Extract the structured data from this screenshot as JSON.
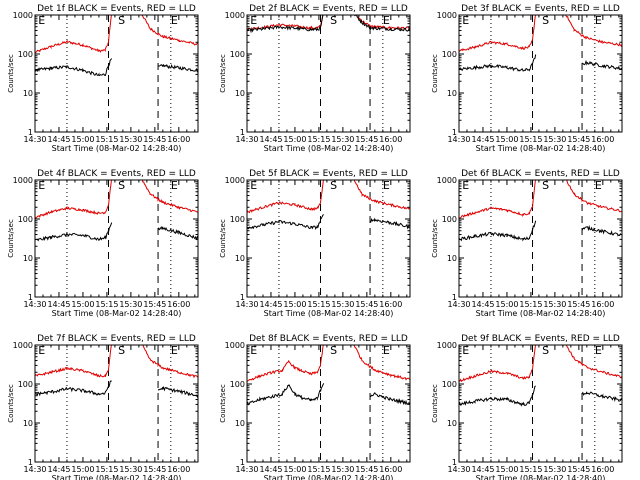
{
  "page": {
    "background": "#ffffff"
  },
  "chart_data": {
    "type": "line",
    "x_axis": {
      "label": "Start Time (08-Mar-02 14:28:40)",
      "ticks": [
        "14:30",
        "14:45",
        "15:00",
        "15:15",
        "15:30",
        "15:45",
        "16:00"
      ],
      "tick_minutes": [
        0,
        15,
        30,
        45,
        60,
        75,
        90
      ],
      "range_minutes": [
        0,
        102
      ]
    },
    "y_axis": {
      "label": "Counts/sec",
      "scale": "log",
      "ticks": [
        "1",
        "10",
        "100",
        "1000"
      ],
      "tick_values": [
        1,
        10,
        100,
        1000
      ],
      "range": [
        1,
        1000
      ]
    },
    "series_colors": {
      "events": "#000000",
      "lld": "#e00000"
    },
    "marker_style": {
      "dotted": "#000000",
      "dashed": "#000000"
    },
    "panels": [
      {
        "title": "Det 1f BLACK = Events, RED = LLD",
        "markers": {
          "dotted": [
            20,
            85
          ],
          "dashed": [
            46,
            77
          ]
        },
        "marker_labels": [
          {
            "text": "E",
            "x": 2
          },
          {
            "text": "S",
            "x": 52
          },
          {
            "text": "E",
            "x": 85
          }
        ],
        "lld": {
          "x": [
            0,
            10,
            20,
            30,
            40,
            44,
            46,
            48,
            66,
            72,
            77,
            80,
            90,
            102
          ],
          "y": [
            110,
            155,
            205,
            170,
            120,
            125,
            205,
            1200,
            1200,
            450,
            330,
            280,
            225,
            175
          ]
        },
        "events": {
          "x": [
            0,
            10,
            20,
            30,
            40,
            44,
            46,
            48,
            62,
            77,
            80,
            90,
            102
          ],
          "y": [
            38,
            43,
            47,
            38,
            28,
            30,
            52,
            75,
            null,
            46,
            50,
            44,
            38
          ]
        }
      },
      {
        "title": "Det 2f BLACK = Events, RED = LLD",
        "markers": {
          "dotted": [
            20,
            85
          ],
          "dashed": [
            46,
            77
          ]
        },
        "marker_labels": [
          {
            "text": "E",
            "x": 2
          },
          {
            "text": "S",
            "x": 52
          },
          {
            "text": "E",
            "x": 85
          }
        ],
        "lld": {
          "x": [
            0,
            10,
            20,
            30,
            40,
            44,
            46,
            48,
            66,
            72,
            77,
            80,
            90,
            102
          ],
          "y": [
            440,
            480,
            560,
            520,
            460,
            470,
            520,
            1200,
            1200,
            700,
            520,
            500,
            470,
            460
          ]
        },
        "events": {
          "x": [
            0,
            10,
            20,
            30,
            40,
            44,
            46,
            48,
            66,
            72,
            77,
            80,
            90,
            102
          ],
          "y": [
            400,
            440,
            490,
            460,
            420,
            430,
            460,
            1200,
            1200,
            640,
            480,
            460,
            440,
            420
          ]
        }
      },
      {
        "title": "Det 3f BLACK = Events, RED = LLD",
        "markers": {
          "dotted": [
            20,
            85
          ],
          "dashed": [
            46,
            77
          ]
        },
        "marker_labels": [
          {
            "text": "E",
            "x": 2
          },
          {
            "text": "S",
            "x": 52
          },
          {
            "text": "E",
            "x": 85
          }
        ],
        "lld": {
          "x": [
            0,
            10,
            20,
            30,
            40,
            44,
            46,
            48,
            66,
            72,
            77,
            80,
            90,
            102
          ],
          "y": [
            120,
            150,
            200,
            180,
            140,
            150,
            220,
            1200,
            1200,
            420,
            300,
            260,
            200,
            170
          ]
        },
        "events": {
          "x": [
            0,
            10,
            20,
            30,
            40,
            44,
            46,
            48,
            62,
            77,
            80,
            90,
            102
          ],
          "y": [
            40,
            45,
            50,
            45,
            38,
            40,
            55,
            90,
            null,
            55,
            60,
            50,
            42
          ]
        }
      },
      {
        "title": "Det 4f BLACK = Events, RED = LLD",
        "markers": {
          "dotted": [
            20,
            85
          ],
          "dashed": [
            46,
            77
          ]
        },
        "marker_labels": [
          {
            "text": "E",
            "x": 2
          },
          {
            "text": "S",
            "x": 52
          },
          {
            "text": "E",
            "x": 85
          }
        ],
        "lld": {
          "x": [
            0,
            10,
            20,
            30,
            40,
            44,
            46,
            48,
            66,
            72,
            77,
            80,
            90,
            102
          ],
          "y": [
            110,
            150,
            190,
            170,
            140,
            150,
            230,
            1200,
            1200,
            450,
            320,
            270,
            200,
            150
          ]
        },
        "events": {
          "x": [
            0,
            10,
            20,
            30,
            40,
            44,
            46,
            48,
            62,
            77,
            80,
            90,
            102
          ],
          "y": [
            28,
            34,
            40,
            38,
            30,
            33,
            50,
            85,
            null,
            55,
            58,
            45,
            32
          ]
        }
      },
      {
        "title": "Det 5f BLACK = Events, RED = LLD",
        "markers": {
          "dotted": [
            20,
            85
          ],
          "dashed": [
            46,
            77
          ]
        },
        "marker_labels": [
          {
            "text": "E",
            "x": 2
          },
          {
            "text": "S",
            "x": 52
          },
          {
            "text": "E",
            "x": 85
          }
        ],
        "lld": {
          "x": [
            0,
            10,
            20,
            30,
            40,
            44,
            46,
            48,
            66,
            72,
            77,
            80,
            90,
            102
          ],
          "y": [
            150,
            200,
            260,
            230,
            180,
            185,
            260,
            1200,
            1200,
            420,
            330,
            290,
            230,
            180
          ]
        },
        "events": {
          "x": [
            0,
            10,
            20,
            30,
            40,
            44,
            46,
            48,
            62,
            77,
            80,
            90,
            102
          ],
          "y": [
            60,
            70,
            85,
            75,
            60,
            62,
            90,
            130,
            null,
            90,
            95,
            80,
            62
          ]
        }
      },
      {
        "title": "Det 6f BLACK = Events, RED = LLD",
        "markers": {
          "dotted": [
            20,
            85
          ],
          "dashed": [
            46,
            77
          ]
        },
        "marker_labels": [
          {
            "text": "E",
            "x": 2
          },
          {
            "text": "S",
            "x": 52
          },
          {
            "text": "E",
            "x": 85
          }
        ],
        "lld": {
          "x": [
            0,
            10,
            20,
            30,
            40,
            44,
            46,
            48,
            66,
            72,
            77,
            80,
            90,
            102
          ],
          "y": [
            110,
            145,
            190,
            170,
            130,
            140,
            210,
            1200,
            1200,
            440,
            310,
            260,
            200,
            160
          ]
        },
        "events": {
          "x": [
            0,
            10,
            20,
            30,
            40,
            44,
            46,
            48,
            62,
            77,
            80,
            90,
            102
          ],
          "y": [
            30,
            36,
            42,
            38,
            30,
            32,
            55,
            85,
            null,
            55,
            60,
            48,
            38
          ]
        }
      },
      {
        "title": "Det 7f BLACK = Events, RED = LLD",
        "markers": {
          "dotted": [
            20,
            85
          ],
          "dashed": [
            46,
            77
          ]
        },
        "marker_labels": [
          {
            "text": "E",
            "x": 2
          },
          {
            "text": "S",
            "x": 52
          },
          {
            "text": "E",
            "x": 85
          }
        ],
        "lld": {
          "x": [
            0,
            10,
            20,
            30,
            40,
            44,
            46,
            48,
            66,
            72,
            77,
            80,
            90,
            102
          ],
          "y": [
            160,
            200,
            250,
            220,
            160,
            160,
            230,
            1200,
            1200,
            420,
            310,
            260,
            200,
            150
          ]
        },
        "events": {
          "x": [
            0,
            10,
            20,
            30,
            40,
            44,
            46,
            48,
            62,
            77,
            80,
            90,
            102
          ],
          "y": [
            55,
            62,
            75,
            68,
            55,
            58,
            90,
            120,
            null,
            70,
            78,
            65,
            50
          ]
        }
      },
      {
        "title": "Det 8f BLACK = Events, RED = LLD",
        "markers": {
          "dotted": [
            20,
            85
          ],
          "dashed": [
            46,
            77
          ]
        },
        "marker_labels": [
          {
            "text": "E",
            "x": 2
          },
          {
            "text": "S",
            "x": 52
          },
          {
            "text": "E",
            "x": 85
          }
        ],
        "lld": {
          "x": [
            0,
            8,
            16,
            22,
            26,
            30,
            34,
            40,
            44,
            46,
            48,
            66,
            72,
            77,
            80,
            90,
            102
          ],
          "y": [
            120,
            160,
            200,
            220,
            380,
            260,
            220,
            180,
            200,
            300,
            1200,
            1200,
            400,
            280,
            230,
            170,
            130
          ]
        },
        "events": {
          "x": [
            0,
            8,
            16,
            22,
            26,
            30,
            34,
            40,
            44,
            46,
            48,
            62,
            77,
            80,
            90,
            102
          ],
          "y": [
            30,
            40,
            48,
            55,
            95,
            55,
            45,
            38,
            42,
            70,
            110,
            null,
            50,
            55,
            40,
            32
          ]
        }
      },
      {
        "title": "Det 9f BLACK = Events, RED = LLD",
        "markers": {
          "dotted": [
            20,
            85
          ],
          "dashed": [
            46,
            77
          ]
        },
        "marker_labels": [
          {
            "text": "E",
            "x": 2
          },
          {
            "text": "S",
            "x": 52
          },
          {
            "text": "E",
            "x": 85
          }
        ],
        "lld": {
          "x": [
            0,
            10,
            20,
            30,
            40,
            44,
            46,
            48,
            66,
            72,
            77,
            80,
            90,
            102
          ],
          "y": [
            120,
            160,
            210,
            190,
            140,
            150,
            240,
            1200,
            1200,
            450,
            320,
            270,
            200,
            150
          ]
        },
        "events": {
          "x": [
            0,
            10,
            20,
            30,
            40,
            44,
            46,
            48,
            62,
            77,
            80,
            90,
            102
          ],
          "y": [
            30,
            36,
            42,
            40,
            30,
            32,
            55,
            90,
            null,
            55,
            60,
            48,
            38
          ]
        }
      }
    ]
  }
}
